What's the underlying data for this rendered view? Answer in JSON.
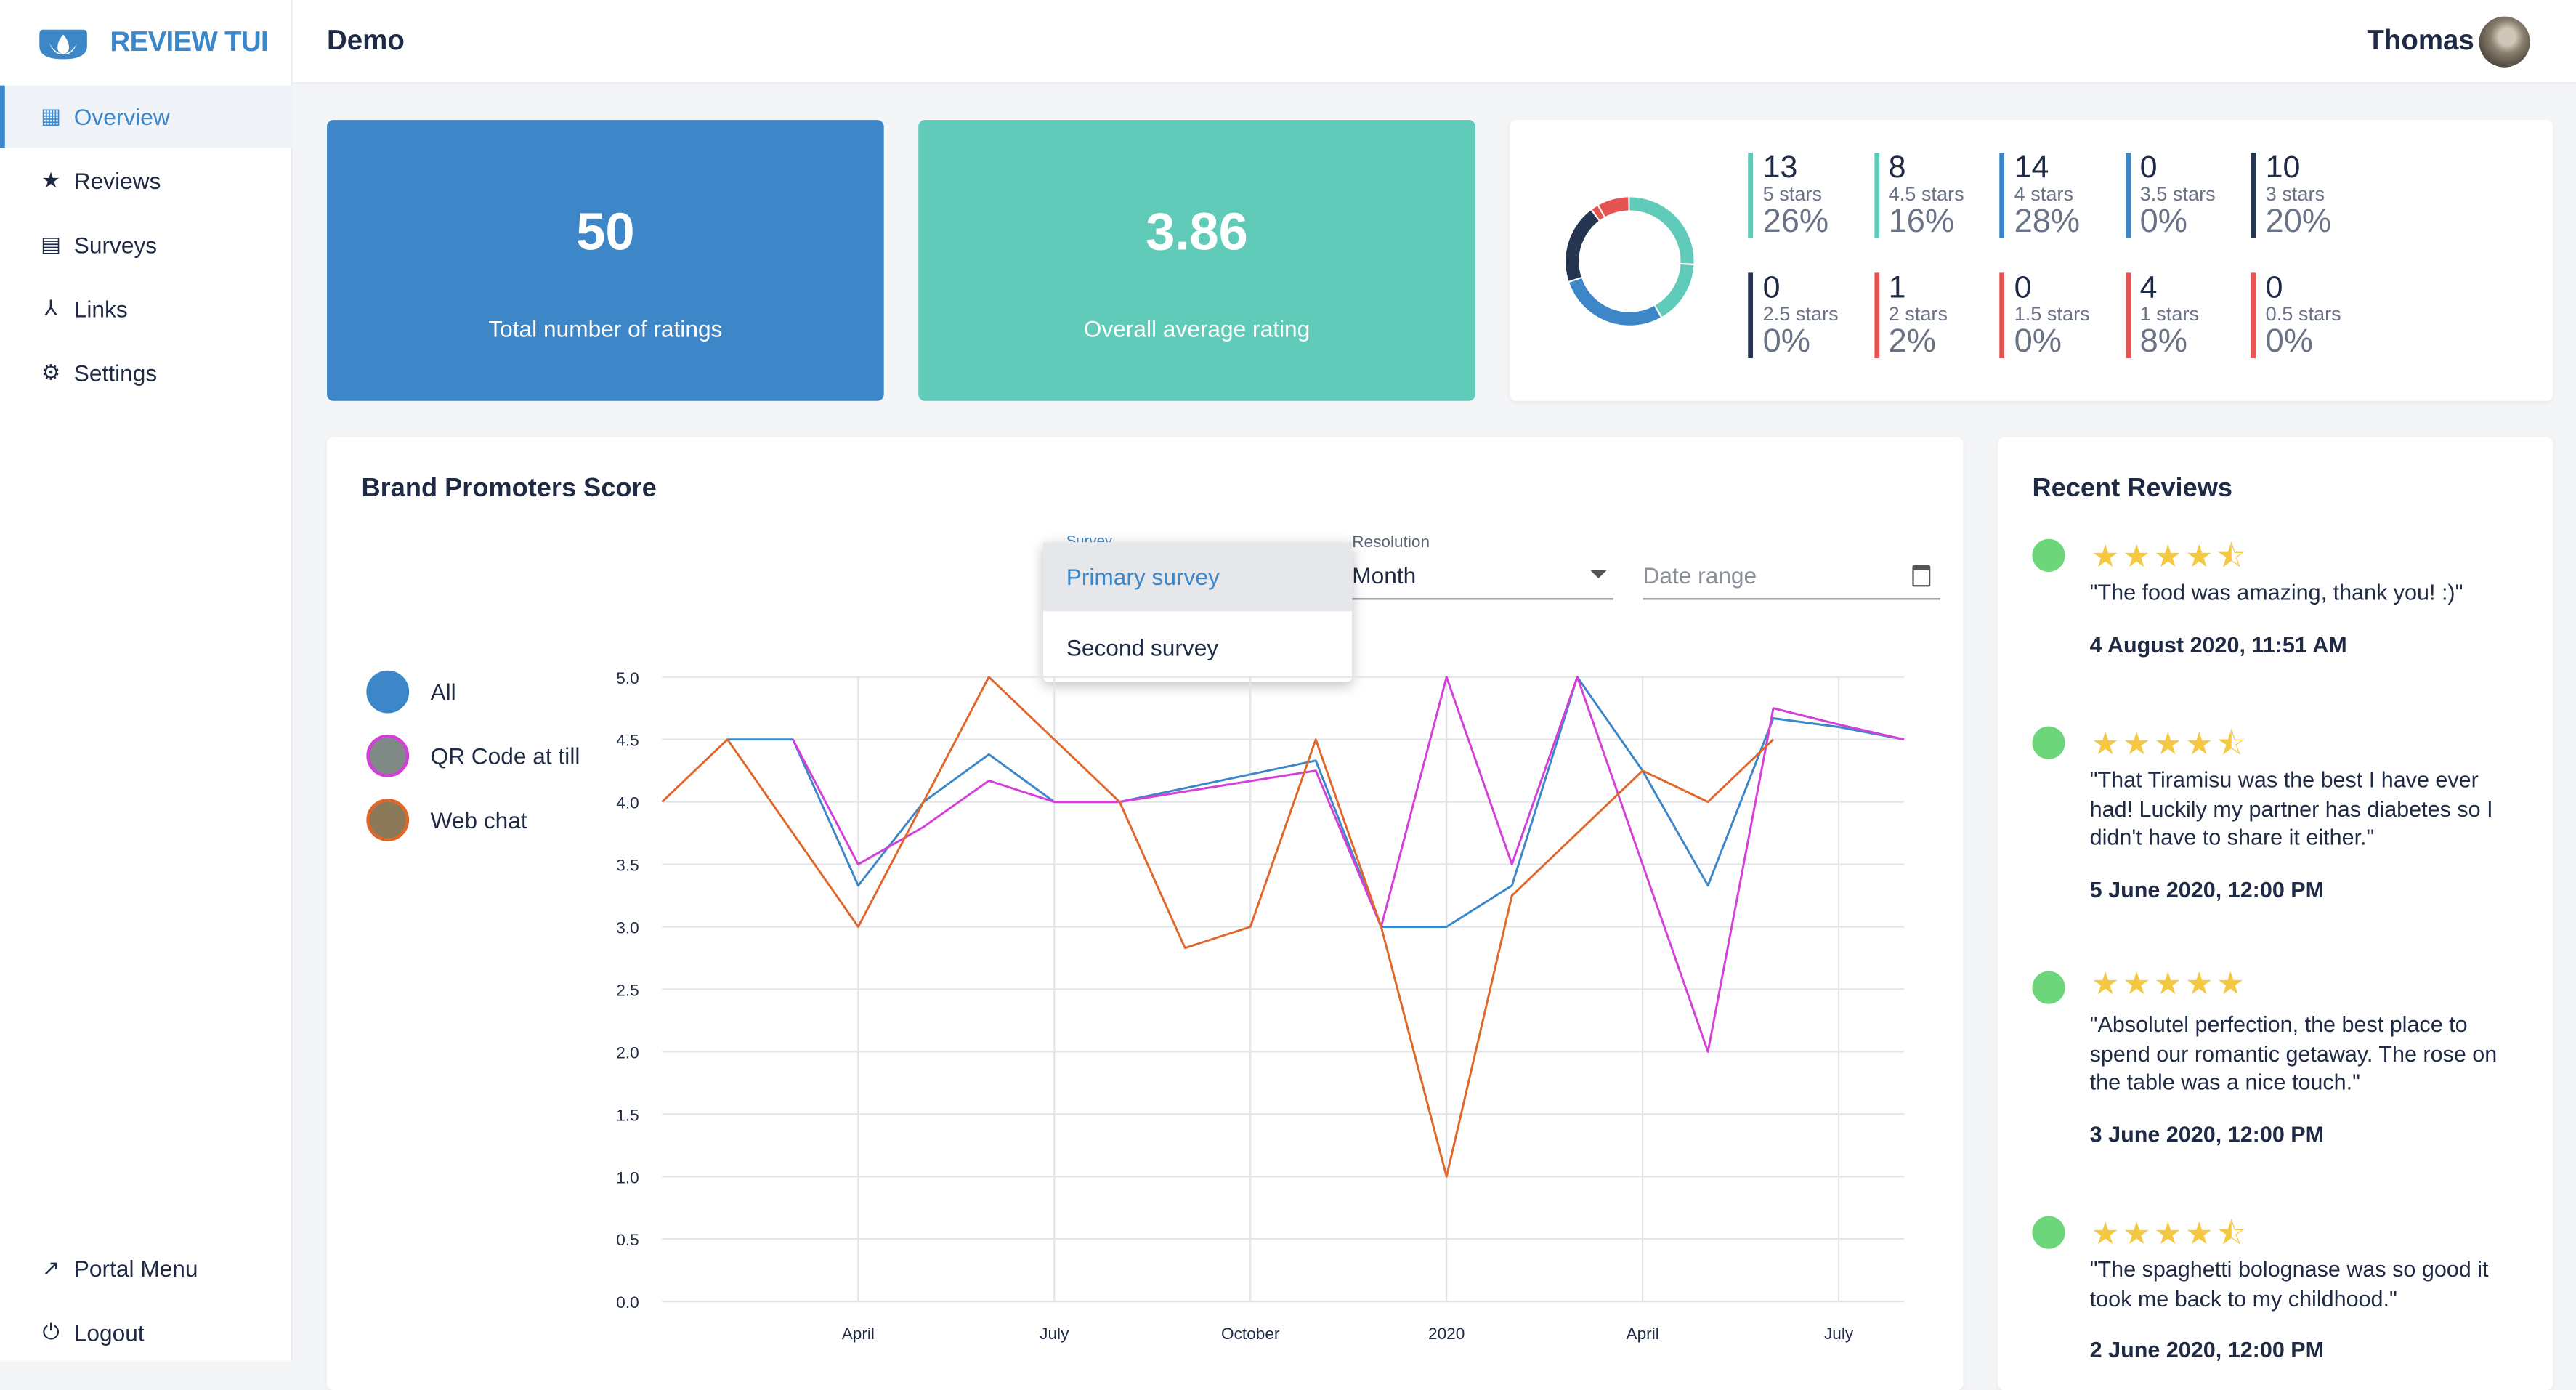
{
  "app": {
    "name": "REVIEW TUI",
    "page_title": "Demo",
    "user_name": "Thomas"
  },
  "sidebar": {
    "items": [
      {
        "label": "Overview",
        "icon": "dashboard-icon"
      },
      {
        "label": "Reviews",
        "icon": "star-icon"
      },
      {
        "label": "Surveys",
        "icon": "clipboard-icon"
      },
      {
        "label": "Links",
        "icon": "share-icon"
      },
      {
        "label": "Settings",
        "icon": "gear-icon"
      }
    ],
    "bottom": [
      {
        "label": "Portal Menu",
        "icon": "external-link-icon"
      },
      {
        "label": "Logout",
        "icon": "power-icon"
      }
    ]
  },
  "kpis": {
    "total": {
      "value": "50",
      "label": "Total number of ratings"
    },
    "average": {
      "value": "3.86",
      "label": "Overall average rating"
    }
  },
  "distribution": [
    {
      "count": "13",
      "label": "5 stars",
      "percent": "26%",
      "color": "#5fcbb8"
    },
    {
      "count": "8",
      "label": "4.5 stars",
      "percent": "16%",
      "color": "#5fcbb8"
    },
    {
      "count": "14",
      "label": "4 stars",
      "percent": "28%",
      "color": "#3d87c8"
    },
    {
      "count": "0",
      "label": "3.5 stars",
      "percent": "0%",
      "color": "#3d87c8"
    },
    {
      "count": "10",
      "label": "3 stars",
      "percent": "20%",
      "color": "#263551"
    },
    {
      "count": "0",
      "label": "2.5 stars",
      "percent": "0%",
      "color": "#263551"
    },
    {
      "count": "1",
      "label": "2 stars",
      "percent": "2%",
      "color": "#e65353"
    },
    {
      "count": "0",
      "label": "1.5 stars",
      "percent": "0%",
      "color": "#e65353"
    },
    {
      "count": "4",
      "label": "1 stars",
      "percent": "8%",
      "color": "#e65353"
    },
    {
      "count": "0",
      "label": "0.5 stars",
      "percent": "0%",
      "color": "#e65353"
    }
  ],
  "chart_section": {
    "title": "Brand Promoters Score",
    "survey_label": "Survey",
    "survey_options": [
      "Primary survey",
      "Second survey"
    ],
    "resolution_label": "Resolution",
    "resolution_value": "Month",
    "date_range_placeholder": "Date range",
    "legend": [
      {
        "label": "All",
        "color": "#3d87c8"
      },
      {
        "label": "QR Code at till",
        "color": "#d43fd9"
      },
      {
        "label": "Web chat",
        "color": "#e0672a"
      }
    ]
  },
  "chart_data": {
    "type": "line",
    "x": [
      0,
      1,
      2,
      3,
      4,
      5,
      6,
      7,
      8,
      9,
      10,
      11,
      12,
      13,
      14,
      15,
      16,
      17,
      18,
      19
    ],
    "x_ticks": [
      {
        "at": 3,
        "label": "April"
      },
      {
        "at": 6,
        "label": "July"
      },
      {
        "at": 9,
        "label": "October"
      },
      {
        "at": 12,
        "label": "2020"
      },
      {
        "at": 15,
        "label": "April"
      },
      {
        "at": 18,
        "label": "July"
      }
    ],
    "ylim": [
      0,
      5
    ],
    "y_ticks": [
      "0.0",
      "0.5",
      "1.0",
      "1.5",
      "2.0",
      "2.5",
      "3.0",
      "3.5",
      "4.0",
      "4.5",
      "5.0"
    ],
    "series": [
      {
        "name": "All",
        "color": "#3d87c8",
        "values": [
          null,
          4.5,
          4.5,
          3.33,
          4.0,
          4.38,
          4.0,
          4.0,
          null,
          null,
          4.33,
          3.0,
          3.0,
          3.33,
          5.0,
          4.25,
          3.33,
          4.67,
          4.6,
          4.5
        ]
      },
      {
        "name": "QR Code at till",
        "color": "#d43fd9",
        "values": [
          null,
          null,
          4.5,
          3.5,
          3.8,
          4.17,
          4.0,
          4.0,
          null,
          null,
          4.25,
          3.0,
          5.0,
          3.5,
          5.0,
          3.5,
          2.0,
          4.75,
          4.62,
          4.5
        ]
      },
      {
        "name": "Web chat",
        "color": "#e0672a",
        "values": [
          4.0,
          4.5,
          null,
          3.0,
          null,
          5.0,
          null,
          4.0,
          2.83,
          3.0,
          4.5,
          3.0,
          1.0,
          3.25,
          null,
          4.25,
          4.0,
          4.5,
          null,
          null
        ]
      }
    ]
  },
  "recent_reviews": {
    "title": "Recent Reviews",
    "items": [
      {
        "stars": "★★★★⯪",
        "rating": 4.5,
        "text": "\"The food was amazing, thank you! :)\"",
        "date": "4 August 2020, 11:51 AM"
      },
      {
        "stars": "★★★★⯪",
        "rating": 4.5,
        "text": "\"That Tiramisu was the best I have ever had! Luckily my partner has diabetes so I didn't have to share it either.\"",
        "date": "5 June 2020, 12:00 PM"
      },
      {
        "stars": "★★★★★",
        "rating": 5,
        "text": "\"Absolutel perfection, the best place to spend our romantic getaway. The rose on the table was a nice touch.\"",
        "date": "3 June 2020, 12:00 PM"
      },
      {
        "stars": "★★★★⯪",
        "rating": 4.5,
        "text": "\"The spaghetti bolognase was so good it took me back to my childhood.\"",
        "date": "2 June 2020, 12:00 PM"
      }
    ]
  }
}
